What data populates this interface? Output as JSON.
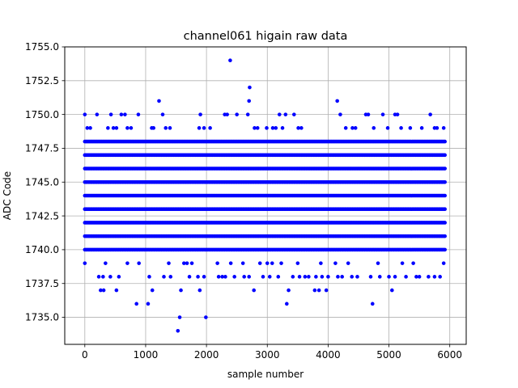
{
  "chart_data": {
    "type": "scatter",
    "title": "channel061 higain raw data",
    "xlabel": "sample number",
    "ylabel": "ADC Code",
    "xlim": [
      -330,
      6270
    ],
    "ylim": [
      1733.0,
      1755.0
    ],
    "xticks": [
      0,
      1000,
      2000,
      3000,
      4000,
      5000,
      6000
    ],
    "xtick_labels": [
      "0",
      "1000",
      "2000",
      "3000",
      "4000",
      "5000",
      "6000"
    ],
    "yticks": [
      1735.0,
      1737.5,
      1740.0,
      1742.5,
      1745.0,
      1747.5,
      1750.0,
      1752.5,
      1755.0
    ],
    "ytick_labels": [
      "1735.0",
      "1737.5",
      "1740.0",
      "1742.5",
      "1745.0",
      "1747.5",
      "1750.0",
      "1752.5",
      "1755.0"
    ],
    "grid": true,
    "marker_color": "#0000ff",
    "dense_levels": [
      1740,
      1741,
      1742,
      1743,
      1744,
      1745,
      1746,
      1747,
      1748
    ],
    "dense_x_range": [
      0,
      5930
    ],
    "sparse_points": [
      {
        "x": 0,
        "y": 1750
      },
      {
        "x": 40,
        "y": 1749
      },
      {
        "x": 90,
        "y": 1749
      },
      {
        "x": 200,
        "y": 1750
      },
      {
        "x": 380,
        "y": 1749
      },
      {
        "x": 430,
        "y": 1750
      },
      {
        "x": 470,
        "y": 1749
      },
      {
        "x": 520,
        "y": 1749
      },
      {
        "x": 600,
        "y": 1750
      },
      {
        "x": 660,
        "y": 1750
      },
      {
        "x": 700,
        "y": 1749
      },
      {
        "x": 760,
        "y": 1749
      },
      {
        "x": 880,
        "y": 1750
      },
      {
        "x": 1100,
        "y": 1749
      },
      {
        "x": 1130,
        "y": 1749
      },
      {
        "x": 1220,
        "y": 1751
      },
      {
        "x": 1280,
        "y": 1750
      },
      {
        "x": 1330,
        "y": 1749
      },
      {
        "x": 1400,
        "y": 1749
      },
      {
        "x": 1880,
        "y": 1749
      },
      {
        "x": 1900,
        "y": 1750
      },
      {
        "x": 1960,
        "y": 1749
      },
      {
        "x": 2060,
        "y": 1749
      },
      {
        "x": 2300,
        "y": 1750
      },
      {
        "x": 2340,
        "y": 1750
      },
      {
        "x": 2390,
        "y": 1754
      },
      {
        "x": 2500,
        "y": 1750
      },
      {
        "x": 2680,
        "y": 1750
      },
      {
        "x": 2700,
        "y": 1751
      },
      {
        "x": 2710,
        "y": 1752
      },
      {
        "x": 2790,
        "y": 1749
      },
      {
        "x": 2840,
        "y": 1749
      },
      {
        "x": 2990,
        "y": 1749
      },
      {
        "x": 3090,
        "y": 1749
      },
      {
        "x": 3140,
        "y": 1749
      },
      {
        "x": 3200,
        "y": 1750
      },
      {
        "x": 3250,
        "y": 1749
      },
      {
        "x": 3300,
        "y": 1750
      },
      {
        "x": 3440,
        "y": 1750
      },
      {
        "x": 3510,
        "y": 1749
      },
      {
        "x": 3560,
        "y": 1749
      },
      {
        "x": 4150,
        "y": 1751
      },
      {
        "x": 4200,
        "y": 1750
      },
      {
        "x": 4290,
        "y": 1749
      },
      {
        "x": 4400,
        "y": 1749
      },
      {
        "x": 4450,
        "y": 1749
      },
      {
        "x": 4620,
        "y": 1750
      },
      {
        "x": 4660,
        "y": 1750
      },
      {
        "x": 4750,
        "y": 1749
      },
      {
        "x": 4900,
        "y": 1750
      },
      {
        "x": 4980,
        "y": 1749
      },
      {
        "x": 5100,
        "y": 1750
      },
      {
        "x": 5140,
        "y": 1750
      },
      {
        "x": 5200,
        "y": 1749
      },
      {
        "x": 5350,
        "y": 1749
      },
      {
        "x": 5540,
        "y": 1749
      },
      {
        "x": 5680,
        "y": 1750
      },
      {
        "x": 5750,
        "y": 1749
      },
      {
        "x": 5790,
        "y": 1749
      },
      {
        "x": 5900,
        "y": 1749
      },
      {
        "x": 0,
        "y": 1739
      },
      {
        "x": 230,
        "y": 1738
      },
      {
        "x": 260,
        "y": 1737
      },
      {
        "x": 300,
        "y": 1738
      },
      {
        "x": 310,
        "y": 1737
      },
      {
        "x": 340,
        "y": 1739
      },
      {
        "x": 420,
        "y": 1738
      },
      {
        "x": 520,
        "y": 1737
      },
      {
        "x": 560,
        "y": 1738
      },
      {
        "x": 700,
        "y": 1739
      },
      {
        "x": 850,
        "y": 1736
      },
      {
        "x": 890,
        "y": 1739
      },
      {
        "x": 1040,
        "y": 1736
      },
      {
        "x": 1060,
        "y": 1738
      },
      {
        "x": 1110,
        "y": 1737
      },
      {
        "x": 1300,
        "y": 1738
      },
      {
        "x": 1380,
        "y": 1739
      },
      {
        "x": 1410,
        "y": 1738
      },
      {
        "x": 1530,
        "y": 1734
      },
      {
        "x": 1560,
        "y": 1735
      },
      {
        "x": 1580,
        "y": 1737
      },
      {
        "x": 1630,
        "y": 1739
      },
      {
        "x": 1680,
        "y": 1739
      },
      {
        "x": 1720,
        "y": 1738
      },
      {
        "x": 1760,
        "y": 1739
      },
      {
        "x": 1860,
        "y": 1738
      },
      {
        "x": 1890,
        "y": 1737
      },
      {
        "x": 1960,
        "y": 1738
      },
      {
        "x": 1990,
        "y": 1735
      },
      {
        "x": 2180,
        "y": 1739
      },
      {
        "x": 2200,
        "y": 1738
      },
      {
        "x": 2260,
        "y": 1738
      },
      {
        "x": 2310,
        "y": 1738
      },
      {
        "x": 2400,
        "y": 1739
      },
      {
        "x": 2460,
        "y": 1738
      },
      {
        "x": 2600,
        "y": 1739
      },
      {
        "x": 2620,
        "y": 1738
      },
      {
        "x": 2700,
        "y": 1738
      },
      {
        "x": 2780,
        "y": 1737
      },
      {
        "x": 2880,
        "y": 1739
      },
      {
        "x": 2930,
        "y": 1738
      },
      {
        "x": 3000,
        "y": 1739
      },
      {
        "x": 3040,
        "y": 1738
      },
      {
        "x": 3080,
        "y": 1739
      },
      {
        "x": 3180,
        "y": 1738
      },
      {
        "x": 3230,
        "y": 1739
      },
      {
        "x": 3320,
        "y": 1736
      },
      {
        "x": 3350,
        "y": 1737
      },
      {
        "x": 3420,
        "y": 1738
      },
      {
        "x": 3500,
        "y": 1739
      },
      {
        "x": 3530,
        "y": 1738
      },
      {
        "x": 3620,
        "y": 1738
      },
      {
        "x": 3680,
        "y": 1738
      },
      {
        "x": 3780,
        "y": 1737
      },
      {
        "x": 3800,
        "y": 1738
      },
      {
        "x": 3850,
        "y": 1737
      },
      {
        "x": 3880,
        "y": 1739
      },
      {
        "x": 3900,
        "y": 1738
      },
      {
        "x": 3970,
        "y": 1737
      },
      {
        "x": 4000,
        "y": 1738
      },
      {
        "x": 4120,
        "y": 1739
      },
      {
        "x": 4160,
        "y": 1738
      },
      {
        "x": 4230,
        "y": 1738
      },
      {
        "x": 4330,
        "y": 1739
      },
      {
        "x": 4390,
        "y": 1738
      },
      {
        "x": 4480,
        "y": 1738
      },
      {
        "x": 4700,
        "y": 1738
      },
      {
        "x": 4730,
        "y": 1736
      },
      {
        "x": 4820,
        "y": 1739
      },
      {
        "x": 4850,
        "y": 1738
      },
      {
        "x": 5000,
        "y": 1738
      },
      {
        "x": 5050,
        "y": 1737
      },
      {
        "x": 5100,
        "y": 1738
      },
      {
        "x": 5220,
        "y": 1739
      },
      {
        "x": 5280,
        "y": 1738
      },
      {
        "x": 5400,
        "y": 1739
      },
      {
        "x": 5450,
        "y": 1738
      },
      {
        "x": 5500,
        "y": 1738
      },
      {
        "x": 5650,
        "y": 1738
      },
      {
        "x": 5750,
        "y": 1738
      },
      {
        "x": 5840,
        "y": 1738
      },
      {
        "x": 5900,
        "y": 1739
      }
    ]
  }
}
